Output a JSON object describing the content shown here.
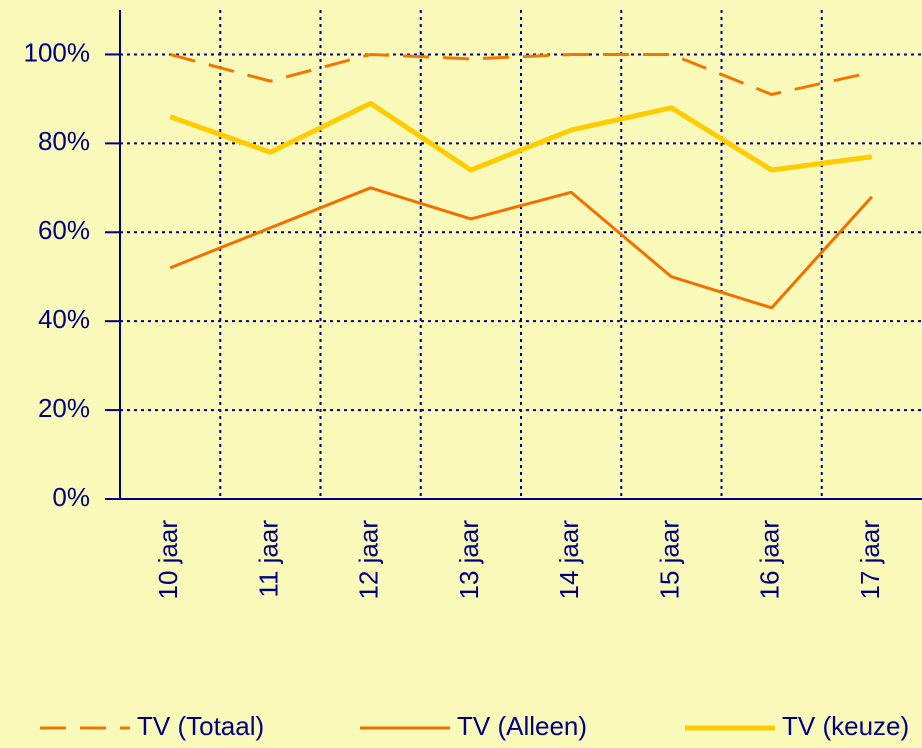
{
  "chart_data": {
    "type": "line",
    "categories": [
      "10 jaar",
      "11 jaar",
      "12 jaar",
      "13 jaar",
      "14 jaar",
      "15 jaar",
      "16 jaar",
      "17 jaar"
    ],
    "series": [
      {
        "name": "TV (Totaal)",
        "color": "#f07800",
        "dash": true,
        "values": [
          100,
          94,
          100,
          99,
          100,
          100,
          91,
          96
        ]
      },
      {
        "name": "TV (Alleen)",
        "color": "#f07000",
        "values": [
          52,
          61,
          70,
          63,
          69,
          50,
          43,
          68
        ]
      },
      {
        "name": "TV (keuze)",
        "color": "#ffcc00",
        "values": [
          86,
          78,
          89,
          74,
          83,
          88,
          74,
          77
        ]
      }
    ],
    "ylim": [
      0,
      110
    ],
    "yticks": [
      {
        "value": 0,
        "label": "0%"
      },
      {
        "value": 20,
        "label": "20%"
      },
      {
        "value": 40,
        "label": "40%"
      },
      {
        "value": 60,
        "label": "60%"
      },
      {
        "value": 80,
        "label": "80%"
      },
      {
        "value": 100,
        "label": "100%"
      }
    ],
    "grid": true
  }
}
